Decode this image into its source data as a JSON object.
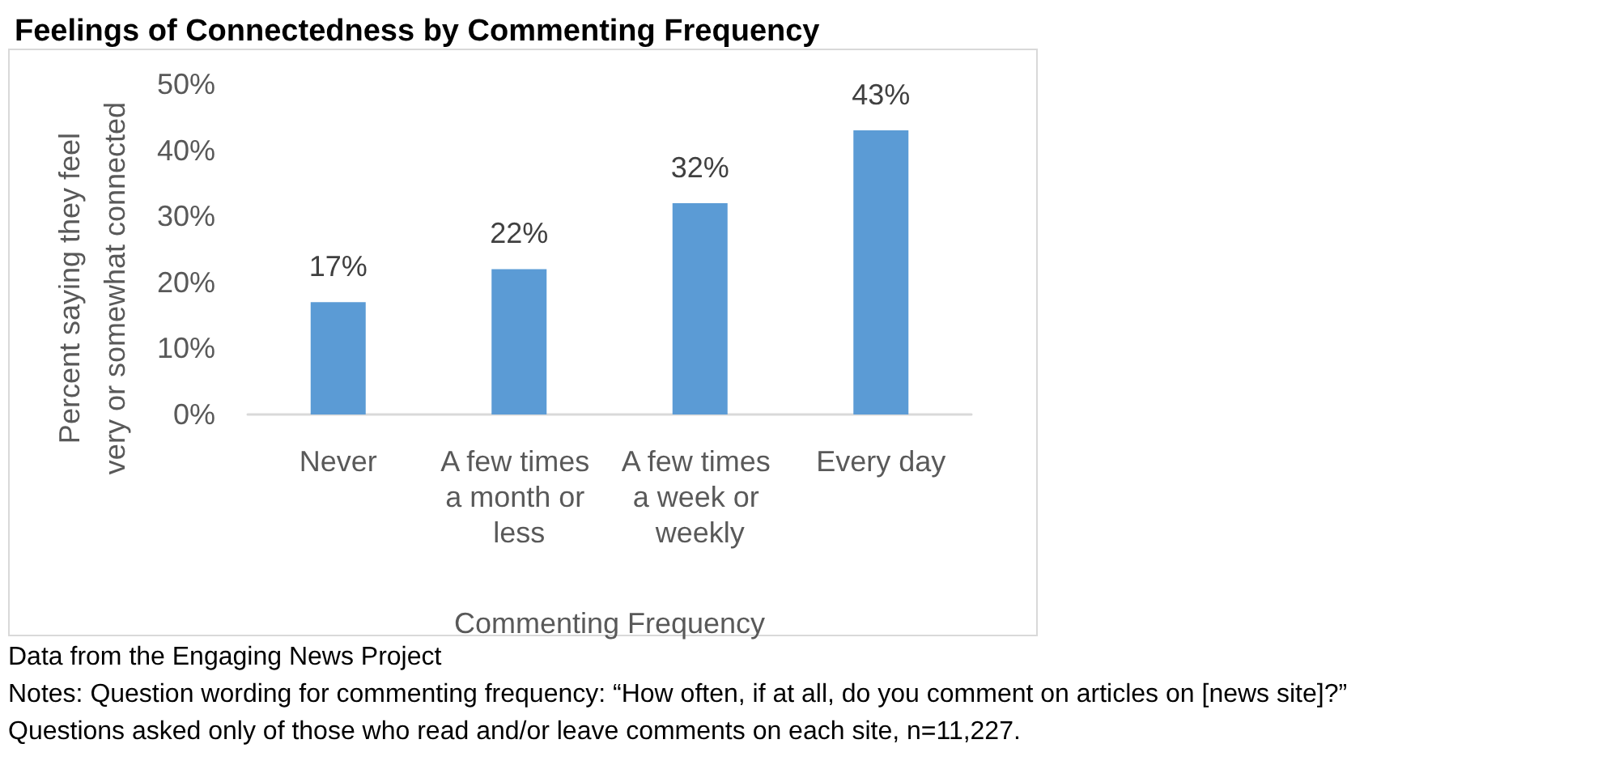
{
  "chart_data": {
    "type": "bar",
    "title": "Feelings of Connectedness by Commenting Frequency",
    "xlabel": "Commenting Frequency",
    "ylabel": "Percent saying they feel\nvery or somewhat connected",
    "categories": [
      "Never",
      "A few times a month or less",
      "A few times a week or weekly",
      "Every day"
    ],
    "values": [
      17,
      22,
      32,
      43
    ],
    "value_labels": [
      "17%",
      "22%",
      "32%",
      "43%"
    ],
    "color": "#5b9bd5",
    "ylim": [
      0,
      50
    ],
    "yticks": [
      {
        "value": 0,
        "label": "0%"
      },
      {
        "value": 10,
        "label": "10%"
      },
      {
        "value": 20,
        "label": "20%"
      },
      {
        "value": 30,
        "label": "30%"
      },
      {
        "value": 40,
        "label": "40%"
      },
      {
        "value": 50,
        "label": "50%"
      }
    ],
    "annotations": [
      "Data from the Engaging News Project",
      "Notes: Question wording for commenting frequency: “How often, if at all, do you comment on articles on [news site]?”",
      "Questions asked only of those who read and/or leave comments on each site, n=11,227."
    ]
  }
}
